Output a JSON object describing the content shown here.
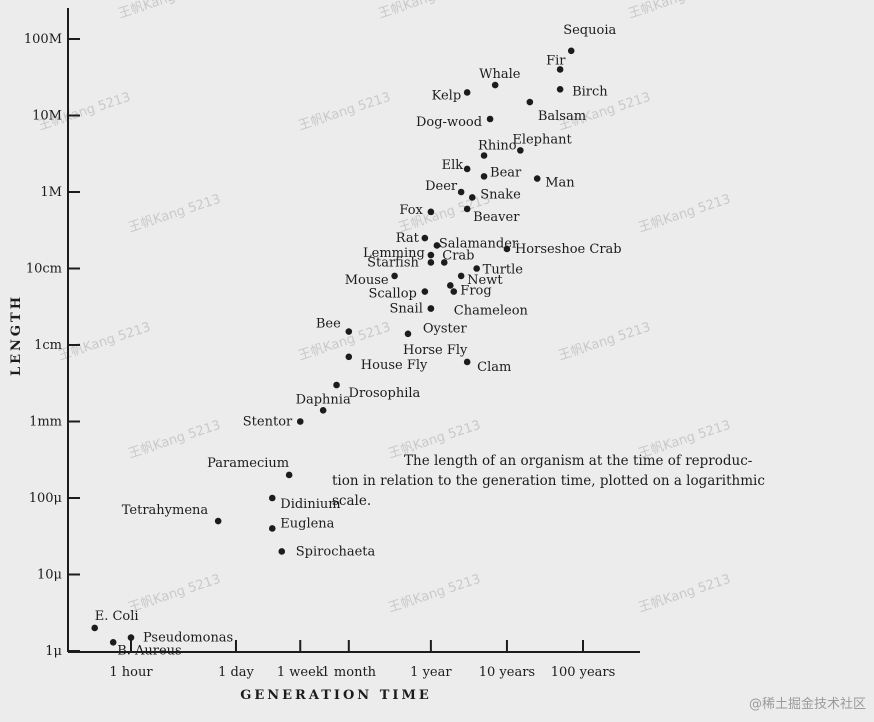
{
  "chart_data": {
    "type": "scatter",
    "xlabel": "GENERATION TIME",
    "ylabel": "LENGTH",
    "x_scale": "log",
    "y_scale": "log",
    "grid": false,
    "x_ticks": [
      "1 hour",
      "1 day",
      "1 week",
      "1 month",
      "1 year",
      "10 years",
      "100 years"
    ],
    "y_ticks": [
      "1μ",
      "10μ",
      "100μ",
      "1mm",
      "1cm",
      "10cm",
      "1M",
      "10M",
      "100M"
    ],
    "caption": [
      "The length of an organism at the time of reproduc-",
      "tion in relation to the generation time, plotted on a logarithmic",
      "scale."
    ],
    "points": [
      {
        "name": "E. Coli",
        "x": "20 min",
        "y": "2μ"
      },
      {
        "name": "Pseudomonas",
        "x": "1 hour",
        "y": "1.5μ"
      },
      {
        "name": "B. Aureus",
        "x": "35 min",
        "y": "1.3μ"
      },
      {
        "name": "Spirochaeta",
        "x": "4 days",
        "y": "20μ"
      },
      {
        "name": "Euglena",
        "x": "3 days",
        "y": "40μ"
      },
      {
        "name": "Tetrahymena",
        "x": "14 hours",
        "y": "50μ"
      },
      {
        "name": "Didinium",
        "x": "3 days",
        "y": "100μ"
      },
      {
        "name": "Paramecium",
        "x": "5 days",
        "y": "200μ"
      },
      {
        "name": "Stentor",
        "x": "1 week",
        "y": "1mm"
      },
      {
        "name": "Daphnia",
        "x": "2 weeks",
        "y": "1.4mm"
      },
      {
        "name": "Drosophila",
        "x": "3 weeks",
        "y": "3mm"
      },
      {
        "name": "House Fly",
        "x": "1 month",
        "y": "7mm"
      },
      {
        "name": "Bee",
        "x": "1 month",
        "y": "1.5cm"
      },
      {
        "name": "Horse Fly",
        "x": "6 months",
        "y": "1.4cm"
      },
      {
        "name": "Clam",
        "x": "3 years",
        "y": "6mm"
      },
      {
        "name": "Mouse",
        "x": "4 months",
        "y": "8cm"
      },
      {
        "name": "Starfish",
        "x": "1 year",
        "y": "12cm"
      },
      {
        "name": "Scallop",
        "x": "10 months",
        "y": "5cm"
      },
      {
        "name": "Snail",
        "x": "1 year",
        "y": "3cm"
      },
      {
        "name": "Oyster",
        "x": "1 year",
        "y": "3cm"
      },
      {
        "name": "Lemming",
        "x": "1 year",
        "y": "15cm"
      },
      {
        "name": "Crab",
        "x": "1.5 years",
        "y": "12cm"
      },
      {
        "name": "Rat",
        "x": "10 months",
        "y": "25cm"
      },
      {
        "name": "Salamander",
        "x": "1.2 years",
        "y": "20cm"
      },
      {
        "name": "Newt",
        "x": "2.5 years",
        "y": "8cm"
      },
      {
        "name": "Frog",
        "x": "1.8 years",
        "y": "6cm"
      },
      {
        "name": "Chameleon",
        "x": "2 years",
        "y": "5cm"
      },
      {
        "name": "Turtle",
        "x": "4 years",
        "y": "10cm"
      },
      {
        "name": "Horseshoe Crab",
        "x": "10 years",
        "y": "18cm"
      },
      {
        "name": "Fox",
        "x": "1 year",
        "y": "55cm"
      },
      {
        "name": "Beaver",
        "x": "3 years",
        "y": "60cm"
      },
      {
        "name": "Snake",
        "x": "3.5 years",
        "y": "85cm"
      },
      {
        "name": "Deer",
        "x": "2.5 years",
        "y": "1M"
      },
      {
        "name": "Bear",
        "x": "5 years",
        "y": "1.6M"
      },
      {
        "name": "Elk",
        "x": "3 years",
        "y": "2M"
      },
      {
        "name": "Rhino",
        "x": "5 years",
        "y": "3M"
      },
      {
        "name": "Man",
        "x": "25 years",
        "y": "1.5M"
      },
      {
        "name": "Elephant",
        "x": "15 years",
        "y": "3.5M"
      },
      {
        "name": "Dog-wood",
        "x": "6 years",
        "y": "9M"
      },
      {
        "name": "Kelp",
        "x": "3 years",
        "y": "20M"
      },
      {
        "name": "Whale",
        "x": "7 years",
        "y": "25M"
      },
      {
        "name": "Balsam",
        "x": "20 years",
        "y": "15M"
      },
      {
        "name": "Birch",
        "x": "50 years",
        "y": "22M"
      },
      {
        "name": "Fir",
        "x": "50 years",
        "y": "40M"
      },
      {
        "name": "Sequoia",
        "x": "70 years",
        "y": "70M"
      }
    ]
  },
  "watermark": "王帆Kang 5213",
  "credit": "@稀土掘金技术社区"
}
